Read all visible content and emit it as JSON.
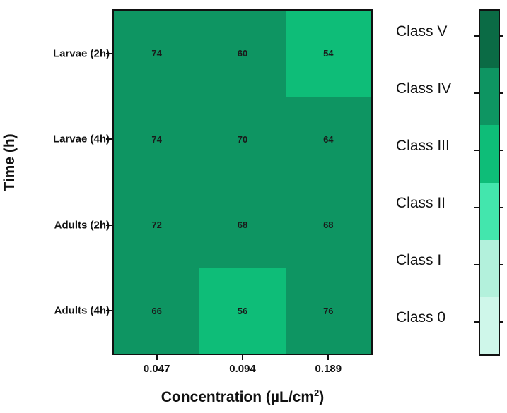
{
  "chart_data": {
    "type": "heatmap",
    "title": "",
    "xlabel": "Concentration (µL/cm²)",
    "xlabel_parts": {
      "main": "Concentration (µL/cm",
      "sup": "2",
      "end": ")"
    },
    "ylabel": "Time (h)",
    "x_categories": [
      "0.047",
      "0.094",
      "0.189"
    ],
    "y_categories": [
      "Larvae (2h)",
      "Larvae (4h)",
      "Adults (2h)",
      "Adults (4h)"
    ],
    "values": [
      [
        74,
        60,
        54
      ],
      [
        74,
        70,
        64
      ],
      [
        72,
        68,
        68
      ],
      [
        66,
        56,
        76
      ]
    ],
    "cell_classes": [
      [
        "Class IV",
        "Class IV",
        "Class III"
      ],
      [
        "Class IV",
        "Class IV",
        "Class IV"
      ],
      [
        "Class IV",
        "Class IV",
        "Class IV"
      ],
      [
        "Class IV",
        "Class III",
        "Class IV"
      ]
    ],
    "colorbar": {
      "labels_top_to_bottom": [
        "Class V",
        "Class IV",
        "Class III",
        "Class II",
        "Class I",
        "Class 0"
      ],
      "colors_top_to_bottom": [
        "#0b6b45",
        "#0e9562",
        "#0ebd78",
        "#43e6ad",
        "#b3f1dc",
        "#cff7ea"
      ]
    },
    "grid": false,
    "legend_position": "right"
  },
  "colors": {
    "class_iv": "#0e9562",
    "class_iii": "#0ebd78",
    "frame": "#111111"
  }
}
